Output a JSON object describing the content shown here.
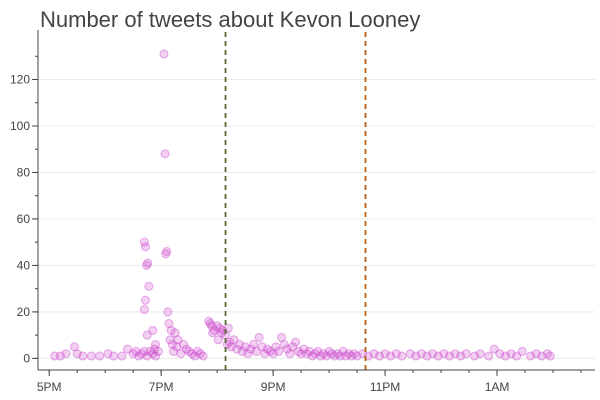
{
  "chart_data": {
    "type": "scatter",
    "title": "Number of tweets about Kevon Looney",
    "xlabel": "",
    "ylabel": "",
    "x_unit": "hour-of-day (17 = 5PM, 25 = 1AM next day)",
    "xlim": [
      16.8,
      26.75
    ],
    "ylim": [
      -5,
      137
    ],
    "x_ticks": [
      {
        "value": 17,
        "label": "5PM"
      },
      {
        "value": 19,
        "label": "7PM"
      },
      {
        "value": 21,
        "label": "9PM"
      },
      {
        "value": 23,
        "label": "11PM"
      },
      {
        "value": 25,
        "label": "1AM"
      }
    ],
    "y_ticks": [
      {
        "value": 0,
        "label": "0"
      },
      {
        "value": 20,
        "label": "20"
      },
      {
        "value": 40,
        "label": "40"
      },
      {
        "value": 60,
        "label": "60"
      },
      {
        "value": 80,
        "label": "80"
      },
      {
        "value": 100,
        "label": "100"
      },
      {
        "value": 120,
        "label": "120"
      }
    ],
    "grid": true,
    "point_color": "#cc44cc",
    "vlines": [
      {
        "x": 20.15,
        "color": "#556b2f",
        "style": "dashed"
      },
      {
        "x": 22.65,
        "color": "#b8600a",
        "style": "dashed"
      }
    ],
    "points": [
      [
        17.1,
        1
      ],
      [
        17.2,
        1
      ],
      [
        17.3,
        2
      ],
      [
        17.45,
        5
      ],
      [
        17.5,
        2
      ],
      [
        17.6,
        1
      ],
      [
        17.75,
        1
      ],
      [
        17.9,
        1
      ],
      [
        18.05,
        2
      ],
      [
        18.15,
        1
      ],
      [
        18.3,
        1
      ],
      [
        18.4,
        4
      ],
      [
        18.5,
        2
      ],
      [
        18.6,
        1
      ],
      [
        18.75,
        1
      ],
      [
        18.85,
        2
      ],
      [
        18.9,
        1
      ],
      [
        18.95,
        3
      ],
      [
        18.55,
        3
      ],
      [
        18.65,
        2
      ],
      [
        18.7,
        3
      ],
      [
        18.75,
        10
      ],
      [
        18.8,
        3
      ],
      [
        18.85,
        12
      ],
      [
        18.88,
        4
      ],
      [
        18.9,
        6
      ],
      [
        18.7,
        50
      ],
      [
        18.72,
        48
      ],
      [
        18.74,
        40
      ],
      [
        18.76,
        41
      ],
      [
        18.78,
        31
      ],
      [
        18.7,
        21
      ],
      [
        18.72,
        25
      ],
      [
        19.05,
        131
      ],
      [
        19.07,
        88
      ],
      [
        19.08,
        45
      ],
      [
        19.1,
        46
      ],
      [
        19.12,
        20
      ],
      [
        19.14,
        15
      ],
      [
        19.16,
        8
      ],
      [
        19.18,
        12
      ],
      [
        19.2,
        6
      ],
      [
        19.22,
        3
      ],
      [
        19.25,
        11
      ],
      [
        19.28,
        5
      ],
      [
        19.3,
        8
      ],
      [
        19.35,
        2
      ],
      [
        19.4,
        6
      ],
      [
        19.45,
        4
      ],
      [
        19.5,
        3
      ],
      [
        19.55,
        2
      ],
      [
        19.6,
        1
      ],
      [
        19.65,
        3
      ],
      [
        19.7,
        2
      ],
      [
        19.75,
        1
      ],
      [
        19.85,
        16
      ],
      [
        19.88,
        15
      ],
      [
        19.9,
        14
      ],
      [
        19.92,
        11
      ],
      [
        19.95,
        12
      ],
      [
        20.0,
        14
      ],
      [
        20.02,
        8
      ],
      [
        20.05,
        13
      ],
      [
        20.08,
        11
      ],
      [
        20.1,
        12
      ],
      [
        20.15,
        10
      ],
      [
        20.18,
        6
      ],
      [
        20.2,
        13
      ],
      [
        20.22,
        7
      ],
      [
        20.25,
        5
      ],
      [
        20.3,
        8
      ],
      [
        20.35,
        4
      ],
      [
        20.4,
        6
      ],
      [
        20.45,
        3
      ],
      [
        20.5,
        5
      ],
      [
        20.55,
        2
      ],
      [
        20.6,
        4
      ],
      [
        20.65,
        6
      ],
      [
        20.7,
        3
      ],
      [
        20.75,
        9
      ],
      [
        20.8,
        5
      ],
      [
        20.85,
        2
      ],
      [
        20.9,
        4
      ],
      [
        20.95,
        3
      ],
      [
        21.0,
        2
      ],
      [
        21.05,
        5
      ],
      [
        21.1,
        3
      ],
      [
        21.15,
        9
      ],
      [
        21.2,
        6
      ],
      [
        21.25,
        4
      ],
      [
        21.3,
        2
      ],
      [
        21.35,
        5
      ],
      [
        21.4,
        7
      ],
      [
        21.45,
        3
      ],
      [
        21.5,
        2
      ],
      [
        21.55,
        4
      ],
      [
        21.6,
        2
      ],
      [
        21.65,
        3
      ],
      [
        21.7,
        1
      ],
      [
        21.75,
        2
      ],
      [
        21.8,
        3
      ],
      [
        21.85,
        1
      ],
      [
        21.9,
        2
      ],
      [
        21.95,
        1
      ],
      [
        22.0,
        3
      ],
      [
        22.05,
        2
      ],
      [
        22.1,
        1
      ],
      [
        22.15,
        2
      ],
      [
        22.2,
        1
      ],
      [
        22.25,
        3
      ],
      [
        22.3,
        1
      ],
      [
        22.35,
        2
      ],
      [
        22.4,
        1
      ],
      [
        22.45,
        2
      ],
      [
        22.5,
        1
      ],
      [
        22.6,
        2
      ],
      [
        22.7,
        1
      ],
      [
        22.8,
        2
      ],
      [
        22.9,
        1
      ],
      [
        23.0,
        2
      ],
      [
        23.1,
        1
      ],
      [
        23.2,
        2
      ],
      [
        23.3,
        1
      ],
      [
        23.45,
        2
      ],
      [
        23.55,
        1
      ],
      [
        23.65,
        2
      ],
      [
        23.75,
        1
      ],
      [
        23.85,
        2
      ],
      [
        23.95,
        1
      ],
      [
        24.05,
        2
      ],
      [
        24.15,
        1
      ],
      [
        24.25,
        2
      ],
      [
        24.35,
        1
      ],
      [
        24.45,
        2
      ],
      [
        24.6,
        1
      ],
      [
        24.7,
        2
      ],
      [
        24.85,
        1
      ],
      [
        24.95,
        4
      ],
      [
        25.05,
        2
      ],
      [
        25.15,
        1
      ],
      [
        25.25,
        2
      ],
      [
        25.35,
        1
      ],
      [
        25.45,
        3
      ],
      [
        25.6,
        1
      ],
      [
        25.7,
        2
      ],
      [
        25.8,
        1
      ],
      [
        25.9,
        2
      ],
      [
        25.95,
        1
      ]
    ]
  }
}
